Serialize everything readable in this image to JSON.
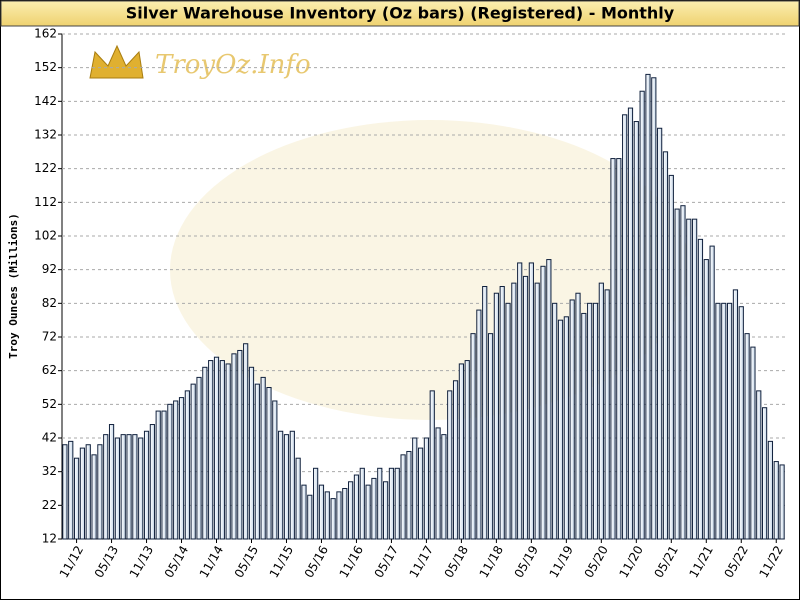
{
  "chart_data": {
    "type": "bar",
    "title": "Silver Warehouse Inventory (Oz bars) (Registered) - Monthly",
    "watermark": "TroyOz.Info",
    "y_label": "Troy Ounces (Millions)",
    "categories": [
      null,
      null,
      "11/12",
      null,
      null,
      null,
      null,
      null,
      "05/13",
      null,
      null,
      null,
      null,
      null,
      "11/13",
      null,
      null,
      null,
      null,
      null,
      "05/14",
      null,
      null,
      null,
      null,
      null,
      "11/14",
      null,
      null,
      null,
      null,
      null,
      "05/15",
      null,
      null,
      null,
      null,
      null,
      "11/15",
      null,
      null,
      null,
      null,
      null,
      "05/16",
      null,
      null,
      null,
      null,
      null,
      "11/16",
      null,
      null,
      null,
      null,
      null,
      "05/17",
      null,
      null,
      null,
      null,
      null,
      "11/17",
      null,
      null,
      null,
      null,
      null,
      "05/18",
      null,
      null,
      null,
      null,
      null,
      "11/18",
      null,
      null,
      null,
      null,
      null,
      "05/19",
      null,
      null,
      null,
      null,
      null,
      "11/19",
      null,
      null,
      null,
      null,
      null,
      "05/20",
      null,
      null,
      null,
      null,
      null,
      "11/20",
      null,
      null,
      null,
      null,
      null,
      "05/21",
      null,
      null,
      null,
      null,
      null,
      "11/21",
      null,
      null,
      null,
      null,
      null,
      "05/22",
      null,
      null,
      null,
      null,
      null,
      "11/22",
      null
    ],
    "values": [
      40,
      41,
      36,
      39,
      40,
      37,
      40,
      43,
      46,
      42,
      43,
      43,
      43,
      42,
      44,
      46,
      50,
      50,
      52,
      53,
      54,
      56,
      58,
      60,
      63,
      65,
      66,
      65,
      64,
      67,
      68,
      70,
      63,
      58,
      60,
      57,
      53,
      44,
      43,
      44,
      36,
      28,
      25,
      33,
      28,
      26,
      24,
      26,
      27,
      29,
      31,
      33,
      28,
      30,
      33,
      29,
      33,
      33,
      37,
      38,
      42,
      39,
      42,
      56,
      45,
      43,
      56,
      59,
      64,
      65,
      73,
      80,
      87,
      73,
      85,
      87,
      82,
      88,
      94,
      90,
      94,
      88,
      93,
      95,
      82,
      77,
      78,
      83,
      85,
      79,
      82,
      82,
      88,
      86,
      125,
      125,
      138,
      140,
      136,
      145,
      150,
      149,
      134,
      127,
      120,
      110,
      111,
      107,
      107,
      101,
      95,
      99,
      82,
      82,
      82,
      86,
      81,
      73,
      69,
      56,
      51,
      41,
      35,
      34
    ],
    "color": "#e6eef7",
    "ylim": [
      12,
      162
    ],
    "yticks": [
      12,
      22,
      32,
      42,
      52,
      62,
      72,
      82,
      92,
      102,
      112,
      122,
      132,
      142,
      152,
      162
    ],
    "grid": true
  }
}
